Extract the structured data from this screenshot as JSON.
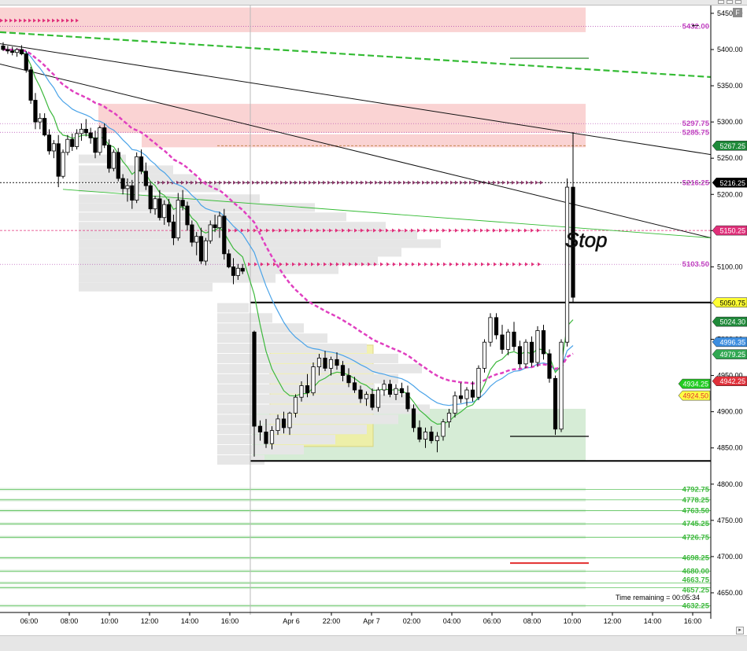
{
  "chart_data": {
    "type": "candlestick",
    "title": "",
    "xlabel": "",
    "ylabel": "",
    "ylim": [
      4625,
      5475
    ],
    "y_ticks": [
      4650,
      4700,
      4750,
      4800,
      4850,
      4900,
      4950,
      5000,
      5050,
      5100,
      5150,
      5200,
      5250,
      5300,
      5350,
      5400,
      5450
    ],
    "y_tick_labels": [
      "4650.00",
      "4700.00",
      "4750.00",
      "4800.00",
      "4850.00",
      "4900.00",
      "4950.00",
      "5000.00",
      "5050.00",
      "5100.00",
      "5150.00",
      "5200.00",
      "5250.00",
      "5300.00",
      "5350.00",
      "5400.00",
      "5450.00"
    ],
    "x_tick_labels": [
      "06:00",
      "08:00",
      "10:00",
      "12:00",
      "14:00",
      "16:00",
      "Apr 6",
      "22:00",
      "Apr 7",
      "02:00",
      "04:00",
      "06:00",
      "08:00",
      "10:00",
      "12:00",
      "14:00",
      "16:00"
    ],
    "price_level_labels": [
      {
        "text": "5432.00",
        "value": 5432.0,
        "color": "#c040c0"
      },
      {
        "text": "5297.75",
        "value": 5297.75,
        "color": "#c040c0"
      },
      {
        "text": "5285.75",
        "value": 5285.75,
        "color": "#c040c0"
      },
      {
        "text": "5216.25",
        "value": 5216.25,
        "color": "#c040c0"
      },
      {
        "text": "5103.50",
        "value": 5103.5,
        "color": "#c040c0"
      },
      {
        "text": "4792.75",
        "value": 4792.75,
        "color": "#3cb83c"
      },
      {
        "text": "4778.25",
        "value": 4778.25,
        "color": "#3cb83c"
      },
      {
        "text": "4763.50",
        "value": 4763.5,
        "color": "#3cb83c"
      },
      {
        "text": "4745.25",
        "value": 4745.25,
        "color": "#3cb83c"
      },
      {
        "text": "4726.75",
        "value": 4726.75,
        "color": "#3cb83c"
      },
      {
        "text": "4698.25",
        "value": 4698.25,
        "color": "#3cb83c"
      },
      {
        "text": "4680.00",
        "value": 4680.0,
        "color": "#3cb83c"
      },
      {
        "text": "4663.75",
        "value": 4663.75,
        "color": "#3cb83c"
      },
      {
        "text": "4657.25",
        "value": 4657.25,
        "color": "#3cb83c"
      },
      {
        "text": "4632.25",
        "value": 4632.25,
        "color": "#3cb83c"
      }
    ],
    "axis_markers": [
      {
        "text": "5267.25",
        "value": 5267.25,
        "bg": "#1f8a3a",
        "fg": "#ffffff"
      },
      {
        "text": "5216.25",
        "value": 5216.25,
        "bg": "#000000",
        "fg": "#ffffff"
      },
      {
        "text": "5150.25",
        "value": 5150.25,
        "bg": "#e0307a",
        "fg": "#ffffff"
      },
      {
        "text": "5050.75",
        "value": 5050.75,
        "bg": "#ffff33",
        "fg": "#000000"
      },
      {
        "text": "5024.30",
        "value": 5024.3,
        "bg": "#1f8a3a",
        "fg": "#ffffff"
      },
      {
        "text": "4996.35",
        "value": 4996.35,
        "bg": "#3d8ee0",
        "fg": "#ffffff"
      },
      {
        "text": "4979.25",
        "value": 4979.25,
        "bg": "#32a852",
        "fg": "#ffffff"
      },
      {
        "text": "4942.25",
        "value": 4942.25,
        "bg": "#e0303a",
        "fg": "#ffffff"
      },
      {
        "text": "4934.25",
        "value": 4934.25,
        "bg": "#22cc22",
        "fg": "#ffffff"
      },
      {
        "text": "4924.50",
        "value": 4924.5,
        "bg": "#ffff44",
        "fg": "#e03030"
      }
    ],
    "annotation": "Stop",
    "time_remaining": "Time remaining = 00:05:34",
    "colors": {
      "up": "#ffffff",
      "down": "#000000",
      "ema_fast": "#3cb83c",
      "ema_slow": "#4aa3e8",
      "vwap": "#e040c0",
      "trend": "#33bb33",
      "resistance_zone": "#f9c8c8",
      "support_zone": "#d6ecd6",
      "value_area": "#f2f0a0",
      "profile": "#e6e6e6"
    },
    "candles": [
      [
        5405,
        5410,
        5398,
        5400
      ],
      [
        5400,
        5405,
        5394,
        5398
      ],
      [
        5398,
        5404,
        5392,
        5396
      ],
      [
        5396,
        5402,
        5390,
        5400
      ],
      [
        5400,
        5406,
        5392,
        5394
      ],
      [
        5394,
        5398,
        5368,
        5372
      ],
      [
        5372,
        5376,
        5325,
        5330
      ],
      [
        5330,
        5340,
        5290,
        5300
      ],
      [
        5300,
        5312,
        5290,
        5305
      ],
      [
        5305,
        5312,
        5280,
        5282
      ],
      [
        5282,
        5290,
        5255,
        5260
      ],
      [
        5260,
        5275,
        5250,
        5270
      ],
      [
        5270,
        5282,
        5210,
        5225
      ],
      [
        5225,
        5262,
        5222,
        5258
      ],
      [
        5258,
        5282,
        5254,
        5276
      ],
      [
        5276,
        5284,
        5260,
        5266
      ],
      [
        5266,
        5290,
        5262,
        5284
      ],
      [
        5284,
        5298,
        5274,
        5290
      ],
      [
        5290,
        5304,
        5280,
        5285
      ],
      [
        5285,
        5292,
        5270,
        5278
      ],
      [
        5278,
        5288,
        5250,
        5258
      ],
      [
        5258,
        5295,
        5254,
        5292
      ],
      [
        5292,
        5298,
        5264,
        5268
      ],
      [
        5268,
        5276,
        5230,
        5236
      ],
      [
        5236,
        5262,
        5232,
        5258
      ],
      [
        5258,
        5264,
        5218,
        5222
      ],
      [
        5222,
        5228,
        5200,
        5208
      ],
      [
        5208,
        5222,
        5190,
        5212
      ],
      [
        5212,
        5220,
        5180,
        5192
      ],
      [
        5192,
        5258,
        5188,
        5252
      ],
      [
        5252,
        5262,
        5228,
        5232
      ],
      [
        5232,
        5244,
        5206,
        5212
      ],
      [
        5212,
        5218,
        5174,
        5180
      ],
      [
        5180,
        5198,
        5172,
        5194
      ],
      [
        5194,
        5206,
        5164,
        5168
      ],
      [
        5168,
        5192,
        5158,
        5186
      ],
      [
        5186,
        5194,
        5156,
        5162
      ],
      [
        5162,
        5172,
        5130,
        5140
      ],
      [
        5140,
        5202,
        5136,
        5192
      ],
      [
        5192,
        5206,
        5178,
        5184
      ],
      [
        5184,
        5190,
        5150,
        5158
      ],
      [
        5158,
        5164,
        5128,
        5134
      ],
      [
        5134,
        5148,
        5116,
        5142
      ],
      [
        5142,
        5154,
        5104,
        5108
      ],
      [
        5108,
        5140,
        5102,
        5136
      ],
      [
        5136,
        5164,
        5132,
        5158
      ],
      [
        5158,
        5172,
        5148,
        5154
      ],
      [
        5154,
        5176,
        5140,
        5170
      ],
      [
        5170,
        5180,
        5110,
        5118
      ],
      [
        5118,
        5124,
        5098,
        5100
      ],
      [
        5100,
        5112,
        5076,
        5088
      ],
      [
        5088,
        5104,
        5082,
        5098
      ],
      [
        5098,
        5104,
        5090,
        5094
      ],
      [
        5010,
        5012,
        4838,
        4880
      ],
      [
        4880,
        4888,
        4860,
        4872
      ],
      [
        4872,
        4890,
        4850,
        4856
      ],
      [
        4856,
        4880,
        4848,
        4874
      ],
      [
        4874,
        4896,
        4868,
        4890
      ],
      [
        4890,
        4900,
        4870,
        4878
      ],
      [
        4878,
        4900,
        4868,
        4898
      ],
      [
        4898,
        4924,
        4892,
        4920
      ],
      [
        4920,
        4942,
        4914,
        4936
      ],
      [
        4936,
        4952,
        4920,
        4926
      ],
      [
        4926,
        4968,
        4922,
        4962
      ],
      [
        4962,
        4980,
        4950,
        4974
      ],
      [
        4974,
        4984,
        4956,
        4960
      ],
      [
        4960,
        4976,
        4950,
        4972
      ],
      [
        4972,
        4982,
        4958,
        4964
      ],
      [
        4964,
        4970,
        4942,
        4950
      ],
      [
        4950,
        4960,
        4934,
        4940
      ],
      [
        4940,
        4948,
        4926,
        4930
      ],
      [
        4930,
        4936,
        4912,
        4918
      ],
      [
        4918,
        4928,
        4908,
        4924
      ],
      [
        4924,
        4932,
        4902,
        4906
      ],
      [
        4906,
        4934,
        4900,
        4930
      ],
      [
        4930,
        4944,
        4922,
        4938
      ],
      [
        4938,
        4944,
        4920,
        4924
      ],
      [
        4924,
        4938,
        4916,
        4932
      ],
      [
        4932,
        4940,
        4920,
        4926
      ],
      [
        4926,
        4936,
        4900,
        4904
      ],
      [
        4904,
        4910,
        4872,
        4878
      ],
      [
        4878,
        4888,
        4858,
        4862
      ],
      [
        4862,
        4878,
        4850,
        4872
      ],
      [
        4872,
        4880,
        4856,
        4860
      ],
      [
        4860,
        4872,
        4844,
        4866
      ],
      [
        4866,
        4890,
        4860,
        4886
      ],
      [
        4886,
        4904,
        4878,
        4898
      ],
      [
        4898,
        4928,
        4892,
        4922
      ],
      [
        4922,
        4940,
        4912,
        4918
      ],
      [
        4918,
        4934,
        4908,
        4930
      ],
      [
        4930,
        4942,
        4914,
        4920
      ],
      [
        4920,
        4964,
        4916,
        4960
      ],
      [
        4960,
        5000,
        4954,
        4996
      ],
      [
        4996,
        5036,
        4990,
        5030
      ],
      [
        5030,
        5036,
        5000,
        5006
      ],
      [
        5006,
        5020,
        4980,
        4986
      ],
      [
        4986,
        5014,
        4978,
        5010
      ],
      [
        5010,
        5024,
        4984,
        4990
      ],
      [
        4990,
        4998,
        4960,
        4966
      ],
      [
        4966,
        5000,
        4960,
        4996
      ],
      [
        4996,
        5004,
        4962,
        4968
      ],
      [
        4968,
        5018,
        4962,
        5012
      ],
      [
        5012,
        5020,
        4972,
        4980
      ],
      [
        4980,
        4986,
        4940,
        4946
      ],
      [
        4946,
        4950,
        4868,
        4876
      ],
      [
        4876,
        5000,
        4872,
        4996
      ],
      [
        4996,
        5222,
        4990,
        5210
      ],
      [
        5210,
        5286,
        5050,
        5058
      ]
    ]
  }
}
